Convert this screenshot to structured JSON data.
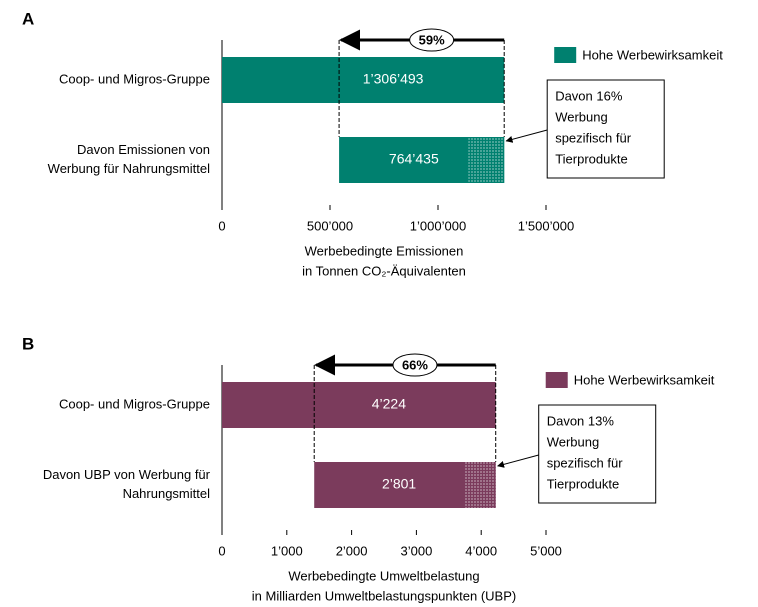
{
  "chart_data": [
    {
      "type": "bar",
      "panel": "A",
      "orientation": "horizontal",
      "color": "#00806f",
      "categories": [
        "Coop- und Migros-Gruppe",
        [
          "Davon Emissionen von",
          "Werbung für Nahrungsmittel"
        ]
      ],
      "values": [
        1306493,
        764435
      ],
      "value_labels": [
        "1’306’493",
        "764’435"
      ],
      "hatched_value": 165000,
      "share_label": "59%",
      "legend": "Hohe Werbewirksamkeit",
      "annotation": [
        "Davon 16%",
        "Werbung",
        "spezifisch für",
        "Tierprodukte"
      ],
      "xlabel": [
        "Werbebedingte Emissionen",
        "in Tonnen CO₂-Äquivalenten"
      ],
      "xlim": [
        0,
        1500000
      ],
      "xticks": [
        0,
        {
          "value": 500000,
          "label": "500’000"
        },
        {
          "value": 1000000,
          "label": "1’000’000"
        },
        {
          "value": 1500000,
          "label": "1’500’000"
        }
      ]
    },
    {
      "type": "bar",
      "panel": "B",
      "orientation": "horizontal",
      "color": "#7b3b5c",
      "categories": [
        "Coop- und Migros-Gruppe",
        [
          "Davon UBP von Werbung für",
          "Nahrungsmittel"
        ]
      ],
      "values": [
        4224,
        2801
      ],
      "value_labels": [
        "4’224",
        "2’801"
      ],
      "hatched_value": 490,
      "share_label": "66%",
      "legend": "Hohe Werbewirksamkeit",
      "annotation": [
        "Davon 13%",
        "Werbung",
        "spezifisch für",
        "Tierprodukte"
      ],
      "xlabel": [
        "Werbebedingte Umweltbelastung",
        "in Milliarden Umweltbelastungspunkten (UBP)"
      ],
      "xlim": [
        0,
        5000
      ],
      "xticks": [
        0,
        {
          "value": 1000,
          "label": "1’000"
        },
        {
          "value": 2000,
          "label": "2’000"
        },
        {
          "value": 3000,
          "label": "3’000"
        },
        {
          "value": 4000,
          "label": "4’000"
        },
        {
          "value": 5000,
          "label": "5’000"
        }
      ]
    }
  ]
}
